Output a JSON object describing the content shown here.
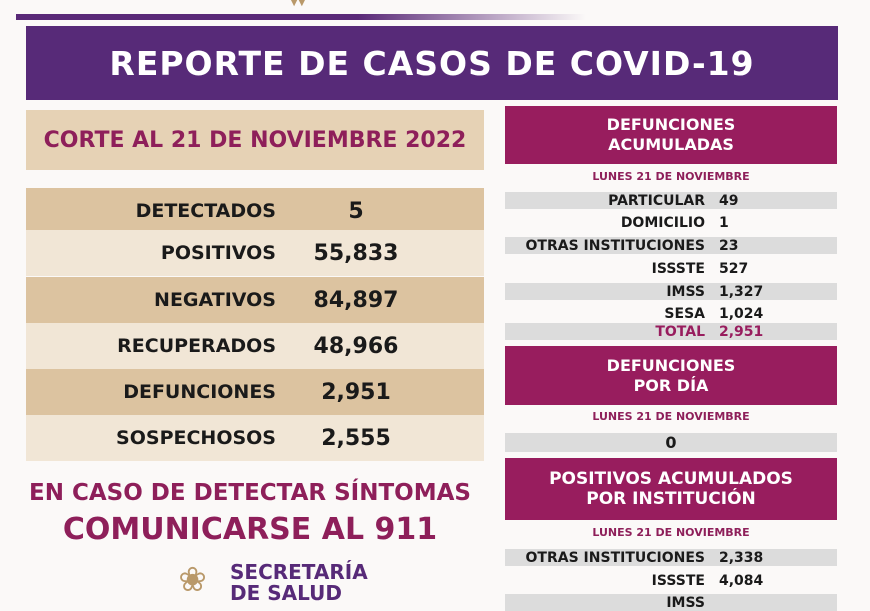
{
  "title": "REPORTE DE CASOS DE COVID-19",
  "left": {
    "corte": "CORTE AL 21 DE NOVIEMBRE 2022",
    "rows": [
      {
        "label": "DETECTADOS",
        "value": "5"
      },
      {
        "label": "POSITIVOS",
        "value": "55,833"
      },
      {
        "label": "NEGATIVOS",
        "value": "84,897"
      },
      {
        "label": "RECUPERADOS",
        "value": "48,966"
      },
      {
        "label": "DEFUNCIONES",
        "value": "2,951"
      },
      {
        "label": "SOSPECHOSOS",
        "value": "2,555"
      }
    ]
  },
  "callout": {
    "line1": "EN CASO DE DETECTAR SÍNTOMAS",
    "line2": "COMUNICARSE AL 911"
  },
  "logo": {
    "line1": "SECRETARÍA",
    "line2": "DE SALUD"
  },
  "defunciones_acumuladas": {
    "title1": "DEFUNCIONES",
    "title2": "ACUMULADAS",
    "date": "LUNES 21 DE NOVIEMBRE",
    "rows": [
      {
        "label": "PARTICULAR",
        "value": "49"
      },
      {
        "label": "DOMICILIO",
        "value": "1"
      },
      {
        "label": "OTRAS INSTITUCIONES",
        "value": "23"
      },
      {
        "label": "ISSSTE",
        "value": "527"
      },
      {
        "label": "IMSS",
        "value": "1,327"
      },
      {
        "label": "SESA",
        "value": "1,024"
      },
      {
        "label": "TOTAL",
        "value": "2,951"
      }
    ]
  },
  "defunciones_dia": {
    "title1": "DEFUNCIONES",
    "title2": "POR DÍA",
    "date": "LUNES 21 DE NOVIEMBRE",
    "value": "0"
  },
  "positivos_institucion": {
    "title1": "POSITIVOS ACUMULADOS",
    "title2": "POR INSTITUCIÓN",
    "date": "LUNES 21 DE NOVIEMBRE",
    "rows": [
      {
        "label": "OTRAS INSTITUCIONES",
        "value": "2,338"
      },
      {
        "label": "ISSSTE",
        "value": "4,084"
      },
      {
        "label": "IMSS",
        "value": ""
      }
    ]
  },
  "colors": {
    "purple": "#572a78",
    "magenta": "#981d5e",
    "tan": "#dcc3a0"
  }
}
